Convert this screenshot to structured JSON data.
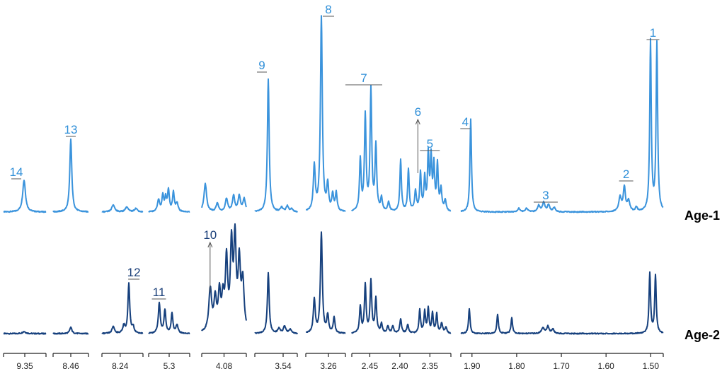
{
  "colors": {
    "age1": "#3a93dc",
    "age2": "#16407d",
    "label_age1": "#2f8fd8",
    "label_age2": "#1a3f79",
    "axis": "#222222"
  },
  "chart_data": {
    "type": "line",
    "title": "",
    "xlabel": "",
    "ylabel": "",
    "x_reversed": true,
    "series_names": [
      "Age-1",
      "Age-2"
    ],
    "axis_segments": [
      {
        "ticks": [
          {
            "ppm": 9.35,
            "label": "9.35"
          }
        ]
      },
      {
        "ticks": [
          {
            "ppm": 8.46,
            "label": "8.46"
          }
        ]
      },
      {
        "ticks": [
          {
            "ppm": 8.24,
            "label": "8.24"
          }
        ]
      },
      {
        "ticks": [
          {
            "ppm": 5.3,
            "label": "5.3"
          }
        ]
      },
      {
        "ticks": [
          {
            "ppm": 4.08,
            "label": "4.08"
          }
        ]
      },
      {
        "ticks": [
          {
            "ppm": 3.54,
            "label": "3.54"
          }
        ]
      },
      {
        "ticks": [
          {
            "ppm": 3.26,
            "label": "3.26"
          }
        ]
      },
      {
        "ticks": [
          {
            "ppm": 2.45,
            "label": "2.45"
          },
          {
            "ppm": 2.4,
            "label": "2.40"
          },
          {
            "ppm": 2.35,
            "label": "2.35"
          }
        ]
      },
      {
        "ticks": [
          {
            "ppm": 1.9,
            "label": "1.90"
          },
          {
            "ppm": 1.8,
            "label": "1.80"
          },
          {
            "ppm": 1.7,
            "label": "1.70"
          },
          {
            "ppm": 1.6,
            "label": "1.60"
          },
          {
            "ppm": 1.5,
            "label": "1.50"
          }
        ]
      }
    ],
    "annotations": [
      {
        "label": "1",
        "series": "Age-1",
        "ppm": 1.495,
        "bracket": true
      },
      {
        "label": "2",
        "series": "Age-1",
        "ppm": 1.555,
        "bracket": true
      },
      {
        "label": "3",
        "series": "Age-1",
        "ppm": 1.735,
        "bracket": true
      },
      {
        "label": "4",
        "series": "Age-1",
        "ppm": 1.915,
        "bracket": true
      },
      {
        "label": "5",
        "series": "Age-1",
        "ppm": 2.35,
        "bracket": true
      },
      {
        "label": "6",
        "series": "Age-1",
        "ppm": 2.37,
        "arrow": true
      },
      {
        "label": "7",
        "series": "Age-1",
        "ppm": 2.46,
        "bracket": true
      },
      {
        "label": "8",
        "series": "Age-1",
        "ppm": 3.26,
        "bracket": true
      },
      {
        "label": "9",
        "series": "Age-1",
        "ppm": 3.6,
        "bracket": true
      },
      {
        "label": "10",
        "series": "Age-2",
        "ppm": 4.13,
        "arrow": true
      },
      {
        "label": "11",
        "series": "Age-2",
        "ppm": 5.35,
        "bracket": true
      },
      {
        "label": "12",
        "series": "Age-2",
        "ppm": 8.21,
        "bracket": true
      },
      {
        "label": "13",
        "series": "Age-1",
        "ppm": 8.46,
        "bracket": true
      },
      {
        "label": "14",
        "series": "Age-1",
        "ppm": 9.37,
        "bracket": true
      }
    ]
  }
}
